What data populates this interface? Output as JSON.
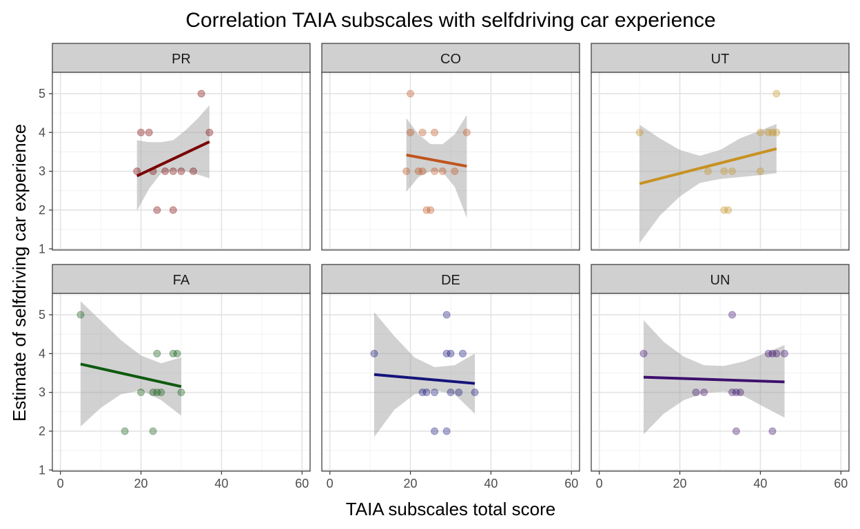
{
  "chart_data": {
    "type": "scatter",
    "title": "Correlation TAIA subscales with selfdriving car experience",
    "xlabel": "TAIA subscales total score",
    "ylabel": "Estimate of selfdriving car experience",
    "xlim": [
      -2,
      62
    ],
    "ylim": [
      0.97,
      5.55
    ],
    "x_ticks": [
      0,
      20,
      40,
      60
    ],
    "y_ticks": [
      1,
      2,
      3,
      4,
      5
    ],
    "grid": true,
    "smooth": "linear fit with confidence band",
    "panels": [
      {
        "name": "PR",
        "color": "#7a0000",
        "points": [
          [
            19,
            3
          ],
          [
            20,
            4
          ],
          [
            22,
            4
          ],
          [
            23,
            3
          ],
          [
            24,
            2
          ],
          [
            26,
            3
          ],
          [
            28,
            3
          ],
          [
            28,
            2
          ],
          [
            30,
            3
          ],
          [
            33,
            3
          ],
          [
            35,
            5
          ],
          [
            37,
            4
          ]
        ],
        "fit": {
          "x": [
            19,
            37
          ],
          "y": [
            2.88,
            3.76
          ]
        },
        "band": {
          "x": [
            19,
            22,
            25,
            28,
            31,
            34,
            37
          ],
          "lo": [
            1.98,
            2.55,
            2.95,
            3.02,
            3.0,
            2.92,
            2.82
          ],
          "hi": [
            3.8,
            3.75,
            3.75,
            3.8,
            4.05,
            4.35,
            4.7
          ]
        }
      },
      {
        "name": "CO",
        "color": "#c0541e",
        "points": [
          [
            19,
            3
          ],
          [
            20,
            5
          ],
          [
            20,
            4
          ],
          [
            22,
            3
          ],
          [
            23,
            3
          ],
          [
            23,
            4
          ],
          [
            24,
            2
          ],
          [
            25,
            2
          ],
          [
            26,
            3
          ],
          [
            26,
            4
          ],
          [
            28,
            3
          ],
          [
            31,
            3
          ],
          [
            34,
            4
          ]
        ],
        "fit": {
          "x": [
            19,
            34
          ],
          "y": [
            3.42,
            3.13
          ]
        },
        "band": {
          "x": [
            19,
            22,
            25,
            28,
            31,
            34
          ],
          "lo": [
            2.47,
            2.85,
            3.0,
            2.98,
            2.6,
            1.8
          ],
          "hi": [
            4.37,
            3.95,
            3.7,
            3.7,
            3.95,
            4.45
          ]
        }
      },
      {
        "name": "UT",
        "color": "#c79222",
        "points": [
          [
            10,
            4
          ],
          [
            27,
            3
          ],
          [
            31,
            3
          ],
          [
            31,
            2
          ],
          [
            32,
            2
          ],
          [
            33,
            3
          ],
          [
            40,
            3
          ],
          [
            40,
            4
          ],
          [
            42,
            4
          ],
          [
            43,
            4
          ],
          [
            44,
            4
          ],
          [
            44,
            5
          ]
        ],
        "fit": {
          "x": [
            10,
            44
          ],
          "y": [
            2.68,
            3.58
          ]
        },
        "band": {
          "x": [
            10,
            15,
            20,
            25,
            30,
            35,
            40,
            44
          ],
          "lo": [
            1.15,
            1.85,
            2.35,
            2.7,
            2.8,
            2.85,
            2.9,
            2.95
          ],
          "hi": [
            4.2,
            3.85,
            3.55,
            3.4,
            3.55,
            3.85,
            4.05,
            4.22
          ]
        }
      },
      {
        "name": "FA",
        "color": "#0f5a0f",
        "points": [
          [
            5,
            5
          ],
          [
            16,
            2
          ],
          [
            20,
            3
          ],
          [
            23,
            3
          ],
          [
            23,
            2
          ],
          [
            24,
            4
          ],
          [
            24,
            3
          ],
          [
            25,
            3
          ],
          [
            28,
            4
          ],
          [
            29,
            4
          ],
          [
            30,
            3
          ]
        ],
        "fit": {
          "x": [
            5,
            30
          ],
          "y": [
            3.73,
            3.15
          ]
        },
        "band": {
          "x": [
            5,
            10,
            15,
            20,
            25,
            30
          ],
          "lo": [
            2.12,
            2.6,
            2.95,
            3.05,
            2.8,
            2.4
          ],
          "hi": [
            5.35,
            4.85,
            4.35,
            3.95,
            3.75,
            3.9
          ]
        }
      },
      {
        "name": "DE",
        "color": "#14147a",
        "points": [
          [
            11,
            4
          ],
          [
            23,
            3
          ],
          [
            24,
            3
          ],
          [
            26,
            2
          ],
          [
            26,
            3
          ],
          [
            29,
            2
          ],
          [
            29,
            4
          ],
          [
            29,
            5
          ],
          [
            30,
            4
          ],
          [
            30,
            3
          ],
          [
            32,
            3
          ],
          [
            33,
            4
          ],
          [
            36,
            3
          ]
        ],
        "fit": {
          "x": [
            11,
            36
          ],
          "y": [
            3.46,
            3.23
          ]
        },
        "band": {
          "x": [
            11,
            16,
            21,
            26,
            31,
            36
          ],
          "lo": [
            1.85,
            2.55,
            2.95,
            3.05,
            2.95,
            2.45
          ],
          "hi": [
            5.07,
            4.45,
            3.9,
            3.65,
            3.7,
            4.0
          ]
        }
      },
      {
        "name": "UN",
        "color": "#3d0f6e",
        "points": [
          [
            11,
            4
          ],
          [
            24,
            3
          ],
          [
            26,
            3
          ],
          [
            33,
            5
          ],
          [
            33,
            3
          ],
          [
            34,
            3
          ],
          [
            34,
            2
          ],
          [
            35,
            3
          ],
          [
            42,
            4
          ],
          [
            43,
            4
          ],
          [
            43,
            2
          ],
          [
            44,
            4
          ],
          [
            46,
            4
          ]
        ],
        "fit": {
          "x": [
            11,
            46
          ],
          "y": [
            3.39,
            3.27
          ]
        },
        "band": {
          "x": [
            11,
            16,
            21,
            26,
            31,
            36,
            41,
            46
          ],
          "lo": [
            1.92,
            2.45,
            2.8,
            2.98,
            3.02,
            2.9,
            2.62,
            2.35
          ],
          "hi": [
            4.86,
            4.3,
            3.92,
            3.7,
            3.68,
            3.8,
            4.0,
            4.22
          ]
        }
      }
    ]
  }
}
